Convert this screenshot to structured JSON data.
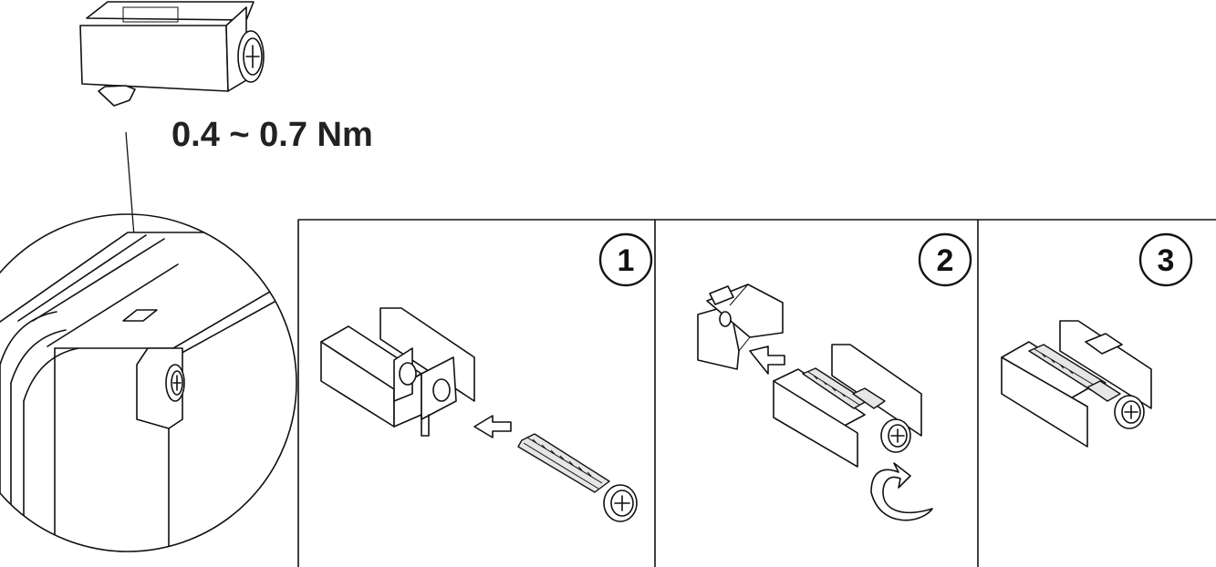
{
  "torque_label": "0.4 ~ 0.7 Nm",
  "steps": [
    {
      "number": "1"
    },
    {
      "number": "2"
    },
    {
      "number": "3"
    }
  ]
}
